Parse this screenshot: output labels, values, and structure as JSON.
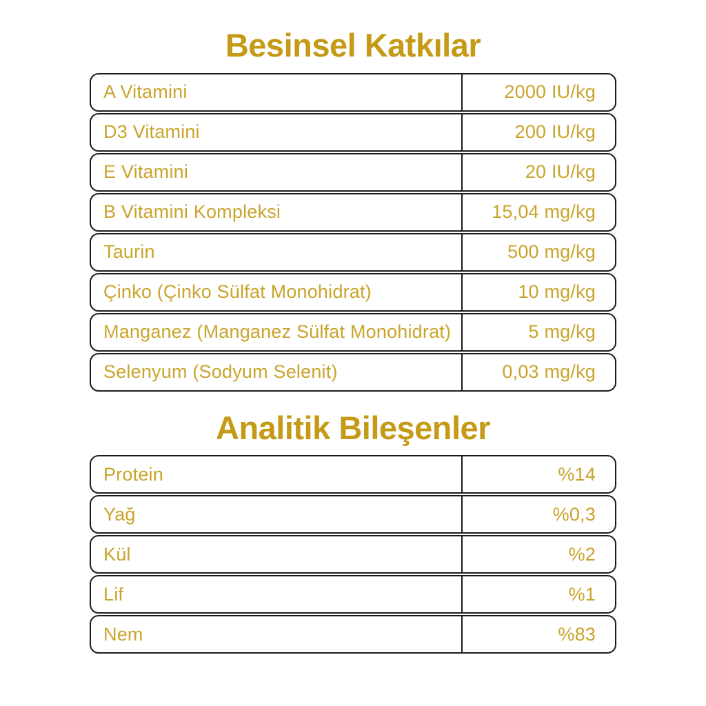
{
  "colors": {
    "background": "#ffffff",
    "title_gold": "#C49A16",
    "text_gold": "#C9A42B",
    "row_border": "#1b1b1b"
  },
  "sections": [
    {
      "title": "Besinsel Katkılar",
      "rows": [
        {
          "label": "A Vitamini",
          "value": "2000 IU/kg"
        },
        {
          "label": "D3 Vitamini",
          "value": "200 IU/kg"
        },
        {
          "label": "E Vitamini",
          "value": "20 IU/kg"
        },
        {
          "label": "B Vitamini Kompleksi",
          "value": "15,04 mg/kg"
        },
        {
          "label": "Taurin",
          "value": "500 mg/kg"
        },
        {
          "label": "Çinko (Çinko Sülfat Monohidrat)",
          "value": "10 mg/kg"
        },
        {
          "label": "Manganez (Manganez Sülfat Monohidrat)",
          "value": "5 mg/kg"
        },
        {
          "label": "Selenyum (Sodyum Selenit)",
          "value": "0,03 mg/kg"
        }
      ]
    },
    {
      "title": "Analitik Bileşenler",
      "rows": [
        {
          "label": "Protein",
          "value": "%14"
        },
        {
          "label": "Yağ",
          "value": "%0,3"
        },
        {
          "label": "Kül",
          "value": "%2"
        },
        {
          "label": "Lif",
          "value": "%1"
        },
        {
          "label": "Nem",
          "value": "%83"
        }
      ]
    }
  ]
}
